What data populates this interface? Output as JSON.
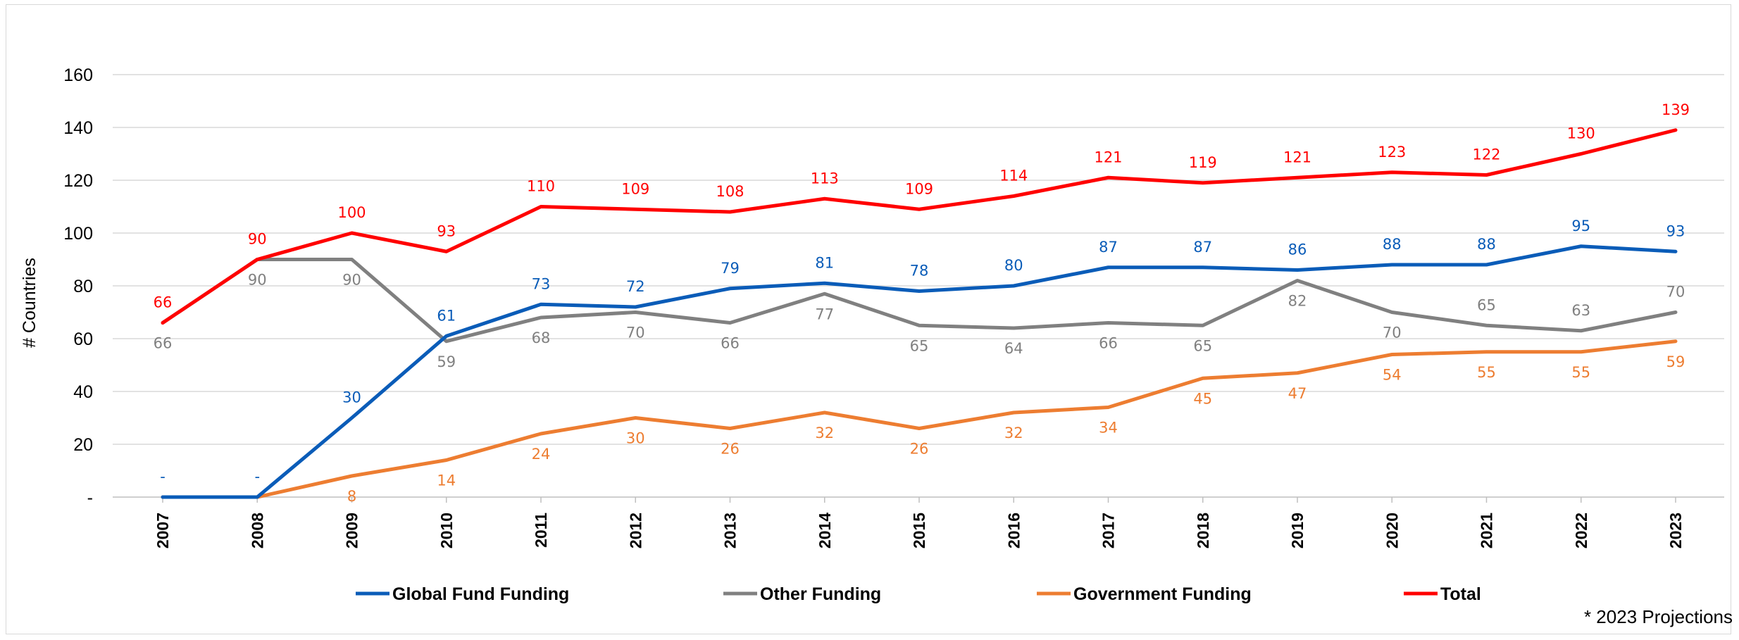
{
  "chart_data": {
    "type": "line",
    "ylabel": "# Countries",
    "ylim": [
      0,
      160
    ],
    "yticks": [
      0,
      20,
      40,
      60,
      80,
      100,
      120,
      140,
      160
    ],
    "yticklabels": [
      "-",
      "20",
      "40",
      "60",
      "80",
      "100",
      "120",
      "140",
      "160"
    ],
    "categories": [
      "2007",
      "2008",
      "2009",
      "2010",
      "2011",
      "2012",
      "2013",
      "2014",
      "2015",
      "2016",
      "2017",
      "2018",
      "2019",
      "2020",
      "2021",
      "2022",
      "2023"
    ],
    "grid": "horizontal",
    "legend_position": "bottom",
    "footnote": "* 2023 Projections",
    "series": [
      {
        "name": "Global Fund Funding",
        "color": "#0a5cb8",
        "values": [
          0,
          0,
          30,
          61,
          73,
          72,
          79,
          81,
          78,
          80,
          87,
          87,
          86,
          88,
          88,
          95,
          93
        ],
        "labels": [
          "-",
          "-",
          "30",
          "61",
          "73",
          "72",
          "79",
          "81",
          "78",
          "80",
          "87",
          "87",
          "86",
          "88",
          "88",
          "95",
          "93"
        ],
        "label_position": [
          "above",
          "above",
          "above",
          "above",
          "above",
          "above",
          "above",
          "above",
          "above",
          "above",
          "above",
          "above",
          "above",
          "above",
          "above",
          "above",
          "above"
        ]
      },
      {
        "name": "Other Funding",
        "color": "#808080",
        "values": [
          66,
          90,
          90,
          59,
          68,
          70,
          66,
          77,
          65,
          64,
          66,
          65,
          82,
          70,
          65,
          63,
          70
        ],
        "labels": [
          "66",
          "90",
          "90",
          "59",
          "68",
          "70",
          "66",
          "77",
          "65",
          "64",
          "66",
          "65",
          "82",
          "70",
          "65",
          "63",
          "70"
        ],
        "label_position": [
          "below",
          "below",
          "below",
          "below",
          "below",
          "below",
          "below",
          "below",
          "below",
          "below",
          "below",
          "below",
          "below",
          "below",
          "above",
          "above",
          "above"
        ]
      },
      {
        "name": "Government Funding",
        "color": "#ed7d31",
        "values": [
          0,
          0,
          8,
          14,
          24,
          30,
          26,
          32,
          26,
          32,
          34,
          45,
          47,
          54,
          55,
          55,
          59
        ],
        "labels": [
          "",
          "",
          "8",
          "14",
          "24",
          "30",
          "26",
          "32",
          "26",
          "32",
          "34",
          "45",
          "47",
          "54",
          "55",
          "55",
          "59"
        ],
        "label_position": [
          "below",
          "below",
          "below",
          "below",
          "below",
          "below",
          "below",
          "below",
          "below",
          "below",
          "below",
          "below",
          "below",
          "below",
          "below",
          "below",
          "below"
        ]
      },
      {
        "name": "Total",
        "color": "#ff0000",
        "values": [
          66,
          90,
          100,
          93,
          110,
          109,
          108,
          113,
          109,
          114,
          121,
          119,
          121,
          123,
          122,
          130,
          139
        ],
        "labels": [
          "66",
          "90",
          "100",
          "93",
          "110",
          "109",
          "108",
          "113",
          "109",
          "114",
          "121",
          "119",
          "121",
          "123",
          "122",
          "130",
          "139"
        ],
        "label_position": [
          "above",
          "above",
          "above",
          "above",
          "above",
          "above",
          "above",
          "above",
          "above",
          "above",
          "above",
          "above",
          "above",
          "above",
          "above",
          "above",
          "above"
        ]
      }
    ]
  }
}
